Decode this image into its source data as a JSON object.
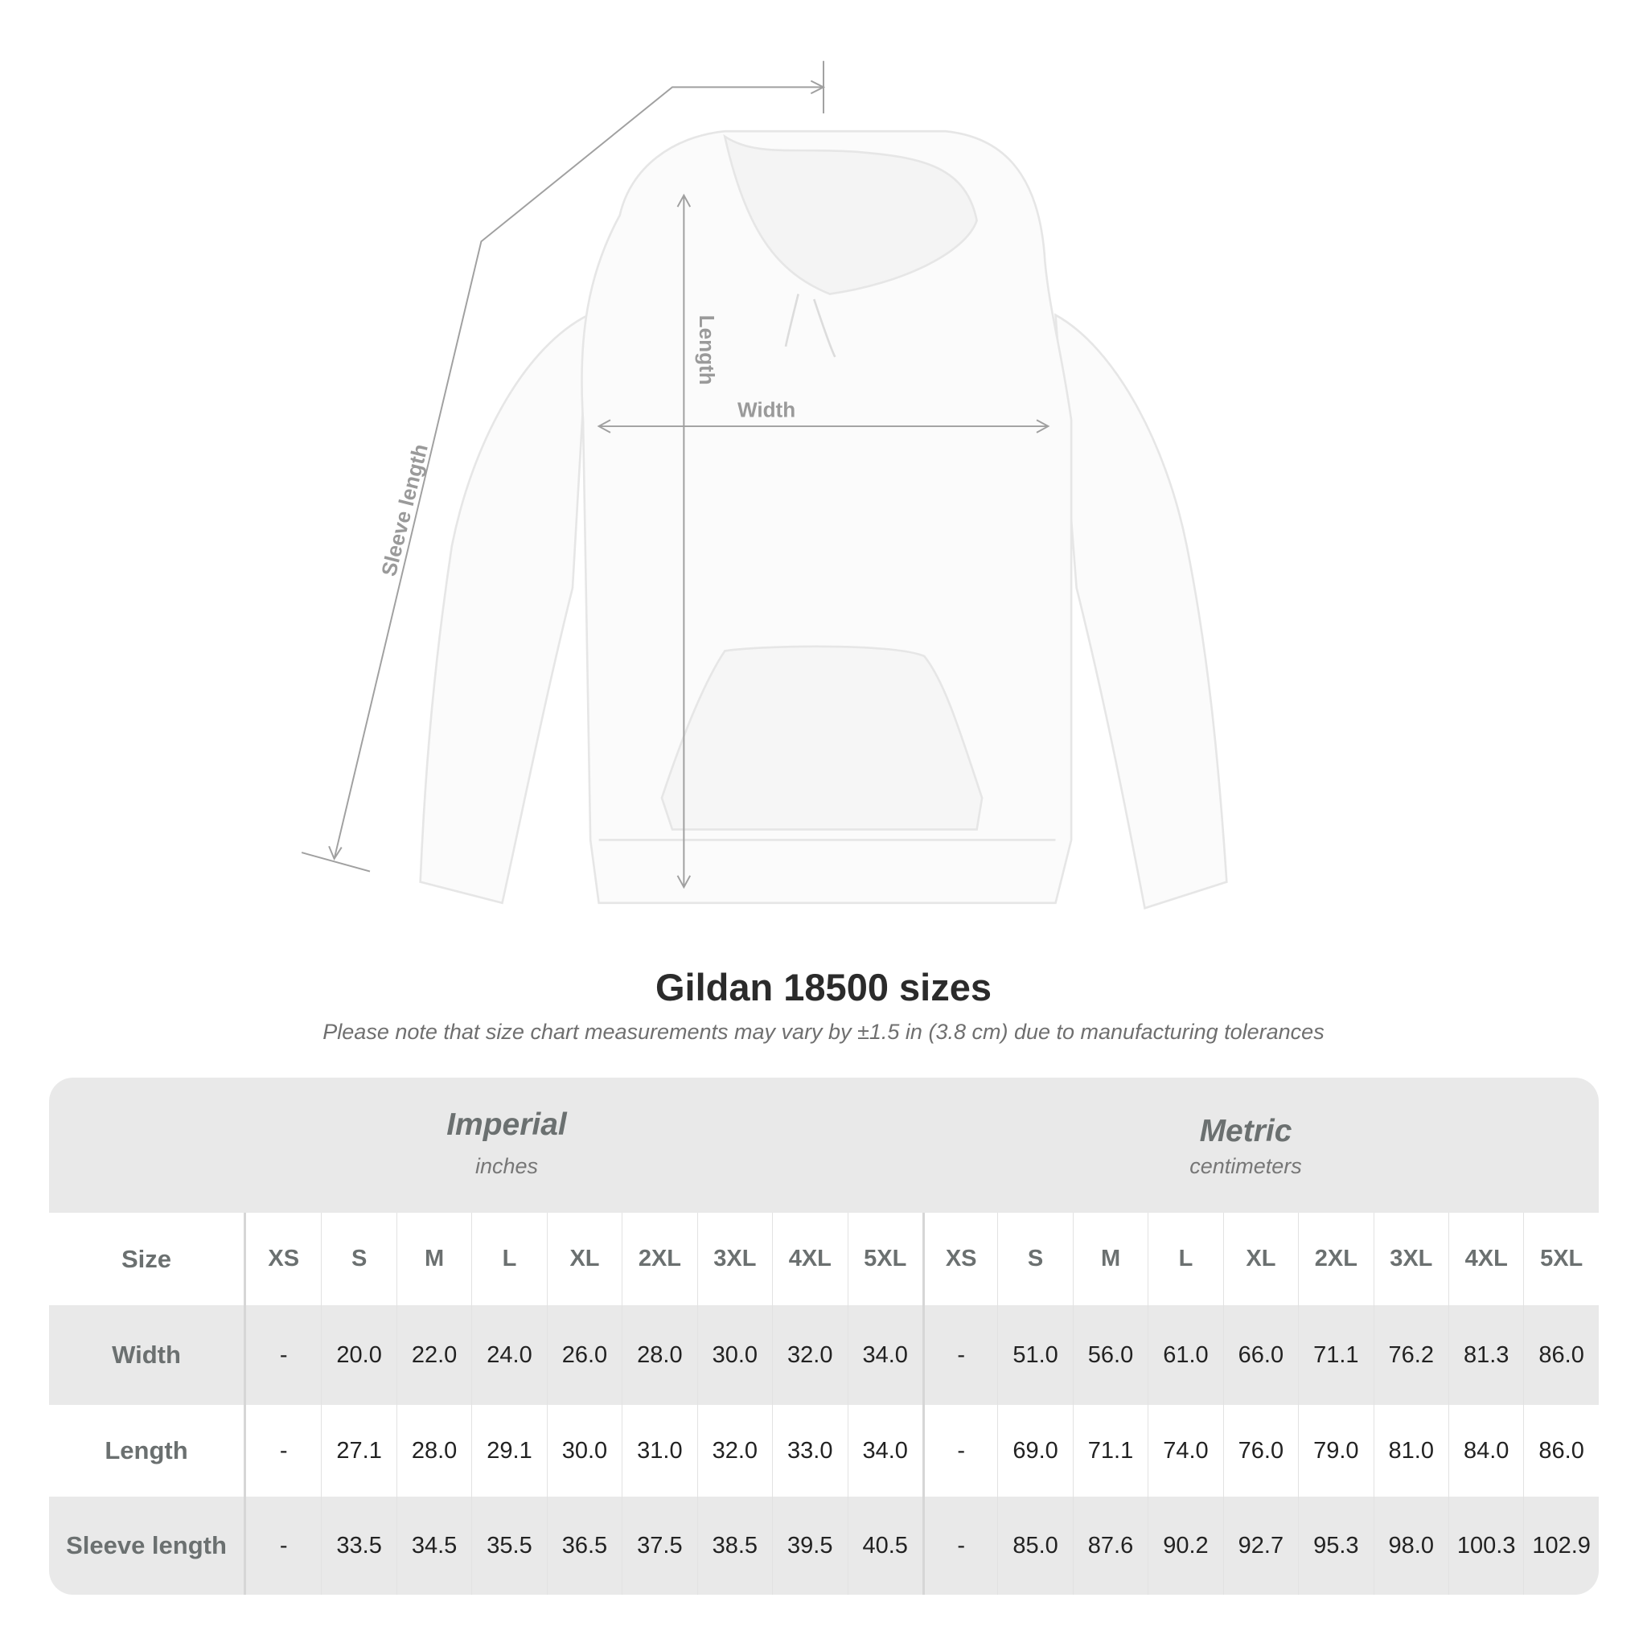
{
  "diagram": {
    "labels": {
      "sleeve": "Sleeve length",
      "length": "Length",
      "width": "Width"
    },
    "line_color": "#a0a0a0"
  },
  "title": "Gildan 18500 sizes",
  "subtitle": "Please note that size chart measurements may vary by ±1.5 in (3.8 cm) due to manufacturing tolerances",
  "table": {
    "imperial": {
      "heading": "Imperial",
      "unit": "inches"
    },
    "metric": {
      "heading": "Metric",
      "unit": "centimeters"
    },
    "size_label": "Size",
    "sizes": [
      "XS",
      "S",
      "M",
      "L",
      "XL",
      "2XL",
      "3XL",
      "4XL",
      "5XL"
    ],
    "rows": [
      {
        "label": "Width",
        "imperial": [
          "-",
          "20.0",
          "22.0",
          "24.0",
          "26.0",
          "28.0",
          "30.0",
          "32.0",
          "34.0"
        ],
        "metric": [
          "-",
          "51.0",
          "56.0",
          "61.0",
          "66.0",
          "71.1",
          "76.2",
          "81.3",
          "86.0"
        ]
      },
      {
        "label": "Length",
        "imperial": [
          "-",
          "27.1",
          "28.0",
          "29.1",
          "30.0",
          "31.0",
          "32.0",
          "33.0",
          "34.0"
        ],
        "metric": [
          "-",
          "69.0",
          "71.1",
          "74.0",
          "76.0",
          "79.0",
          "81.0",
          "84.0",
          "86.0"
        ]
      },
      {
        "label": "Sleeve length",
        "imperial": [
          "-",
          "33.5",
          "34.5",
          "35.5",
          "36.5",
          "37.5",
          "38.5",
          "39.5",
          "40.5"
        ],
        "metric": [
          "-",
          "85.0",
          "87.6",
          "90.2",
          "92.7",
          "95.3",
          "98.0",
          "100.3",
          "102.9"
        ]
      }
    ],
    "band_color": "#e9e9e9"
  }
}
